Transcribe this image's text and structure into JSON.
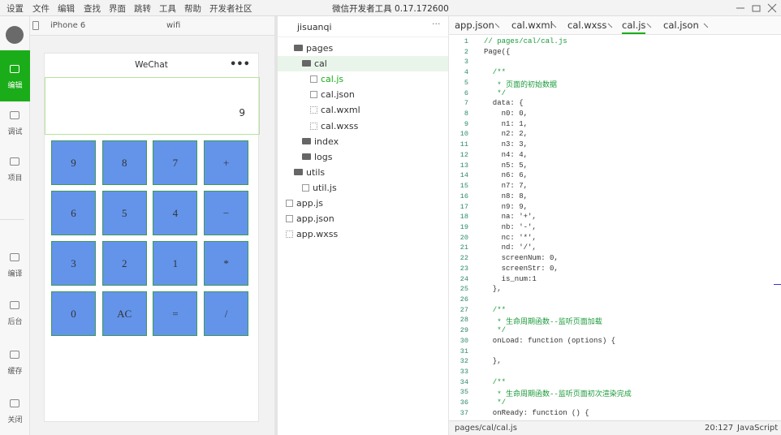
{
  "app_title": "微信开发者工具 0.17.172600",
  "menu": [
    "设置",
    "文件",
    "编辑",
    "查找",
    "界面",
    "跳转",
    "工具",
    "帮助",
    "开发者社区"
  ],
  "sidebar": [
    "编辑",
    "调试",
    "项目",
    "编译",
    "后台",
    "缓存",
    "关闭"
  ],
  "simulator": {
    "device": "iPhone 6",
    "network": "wifi",
    "nav_title": "WeChat",
    "nav_menu": "•••",
    "display": "9",
    "keys": [
      [
        "9",
        "8",
        "7",
        "+"
      ],
      [
        "6",
        "5",
        "4",
        "−"
      ],
      [
        "3",
        "2",
        "1",
        "*"
      ],
      [
        "0",
        "AC",
        "=",
        "/"
      ]
    ]
  },
  "tree": {
    "project": "jisuanqi",
    "more": "···",
    "items": [
      {
        "label": "pages",
        "kind": "folder",
        "depth": 1
      },
      {
        "label": "cal",
        "kind": "folder",
        "depth": 2,
        "selected": true
      },
      {
        "label": "cal.js",
        "kind": "js",
        "depth": 3,
        "active": true
      },
      {
        "label": "cal.json",
        "kind": "json",
        "depth": 3
      },
      {
        "label": "cal.wxml",
        "kind": "wxml",
        "depth": 3
      },
      {
        "label": "cal.wxss",
        "kind": "wxss",
        "depth": 3
      },
      {
        "label": "index",
        "kind": "folder",
        "depth": 2
      },
      {
        "label": "logs",
        "kind": "folder",
        "depth": 2
      },
      {
        "label": "utils",
        "kind": "folder",
        "depth": 1
      },
      {
        "label": "util.js",
        "kind": "js",
        "depth": 2
      },
      {
        "label": "app.js",
        "kind": "js",
        "depth": 0
      },
      {
        "label": "app.json",
        "kind": "json",
        "depth": 0
      },
      {
        "label": "app.wxss",
        "kind": "wxss",
        "depth": 0
      }
    ]
  },
  "tabs": [
    "app.json",
    "cal.wxml",
    "cal.wxss",
    "cal.js",
    "cal.json"
  ],
  "active_tab": 3,
  "code": [
    {
      "n": "1",
      "t": "// pages/cal/cal.js"
    },
    {
      "n": "2",
      "t": "Page({"
    },
    {
      "n": "3",
      "t": ""
    },
    {
      "n": "4",
      "t": "  /**"
    },
    {
      "n": "5",
      "t": "   * 页面的初始数据"
    },
    {
      "n": "6",
      "t": "   */"
    },
    {
      "n": "7",
      "t": "  data: {"
    },
    {
      "n": "8",
      "t": "    n0: 0,"
    },
    {
      "n": "9",
      "t": "    n1: 1,"
    },
    {
      "n": "10",
      "t": "    n2: 2,"
    },
    {
      "n": "11",
      "t": "    n3: 3,"
    },
    {
      "n": "12",
      "t": "    n4: 4,"
    },
    {
      "n": "13",
      "t": "    n5: 5,"
    },
    {
      "n": "14",
      "t": "    n6: 6,"
    },
    {
      "n": "15",
      "t": "    n7: 7,"
    },
    {
      "n": "16",
      "t": "    n8: 8,"
    },
    {
      "n": "17",
      "t": "    n9: 9,"
    },
    {
      "n": "18",
      "t": "    na: '+',"
    },
    {
      "n": "19",
      "t": "    nb: '-',"
    },
    {
      "n": "20",
      "t": "    nc: '*',"
    },
    {
      "n": "21",
      "t": "    nd: '/',"
    },
    {
      "n": "22",
      "t": "    screenNum: 0,"
    },
    {
      "n": "23",
      "t": "    screenStr: 0,"
    },
    {
      "n": "24",
      "t": "    is_num:1"
    },
    {
      "n": "25",
      "t": "  },"
    },
    {
      "n": "26",
      "t": ""
    },
    {
      "n": "27",
      "t": "  /**"
    },
    {
      "n": "28",
      "t": "   * 生命周期函数--监听页面加载"
    },
    {
      "n": "29",
      "t": "   */"
    },
    {
      "n": "30",
      "t": "  onLoad: function (options) {"
    },
    {
      "n": "31",
      "t": ""
    },
    {
      "n": "32",
      "t": "  },"
    },
    {
      "n": "33",
      "t": ""
    },
    {
      "n": "34",
      "t": "  /**"
    },
    {
      "n": "35",
      "t": "   * 生命周期函数--监听页面初次渲染完成"
    },
    {
      "n": "36",
      "t": "   */"
    },
    {
      "n": "37",
      "t": "  onReady: function () {"
    }
  ],
  "status": {
    "path": "pages/cal/cal.js",
    "position": "20:127",
    "language": "JavaScript"
  }
}
